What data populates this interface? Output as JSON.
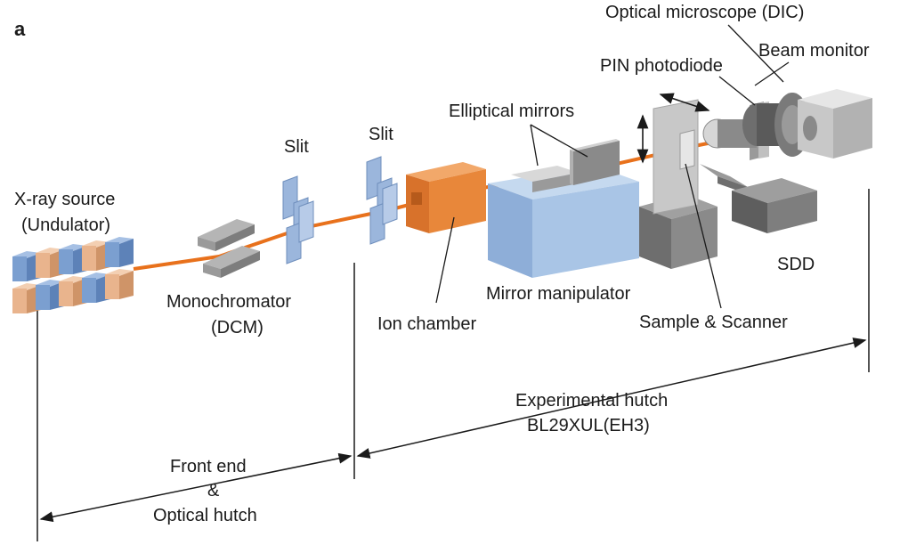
{
  "figure": {
    "panel_letter": "a",
    "components": {
      "optical_microscope": "Optical microscope (DIC)",
      "beam_monitor": "Beam monitor",
      "pin_photodiode": "PIN photodiode",
      "elliptical_mirrors": "Elliptical mirrors",
      "slit_1": "Slit",
      "slit_2": "Slit",
      "xray_source_line1": "X-ray source",
      "xray_source_line2": "(Undulator)",
      "monochromator_line1": "Monochromator",
      "monochromator_line2": "(DCM)",
      "ion_chamber": "Ion chamber",
      "mirror_manipulator": "Mirror manipulator",
      "sample_scanner": "Sample & Scanner",
      "sdd": "SDD"
    },
    "sections": {
      "experimental_hutch_line1": "Experimental hutch",
      "experimental_hutch_line2": "BL29XUL(EH3)",
      "front_end_line1": "Front end",
      "front_end_line2": "&",
      "front_end_line3": "Optical hutch"
    },
    "colors": {
      "beam": "#e8711c",
      "undulator_blue": "#7b9fd0",
      "undulator_peach": "#e9b48d",
      "slit_blue": "#9bb6dc",
      "ion_chamber": "#e8873a",
      "manipulator_blue": "#a9c5e6",
      "gray_dark": "#6e6e6e",
      "gray_mid": "#9a9a9a",
      "gray_light": "#c8c8c8"
    }
  }
}
